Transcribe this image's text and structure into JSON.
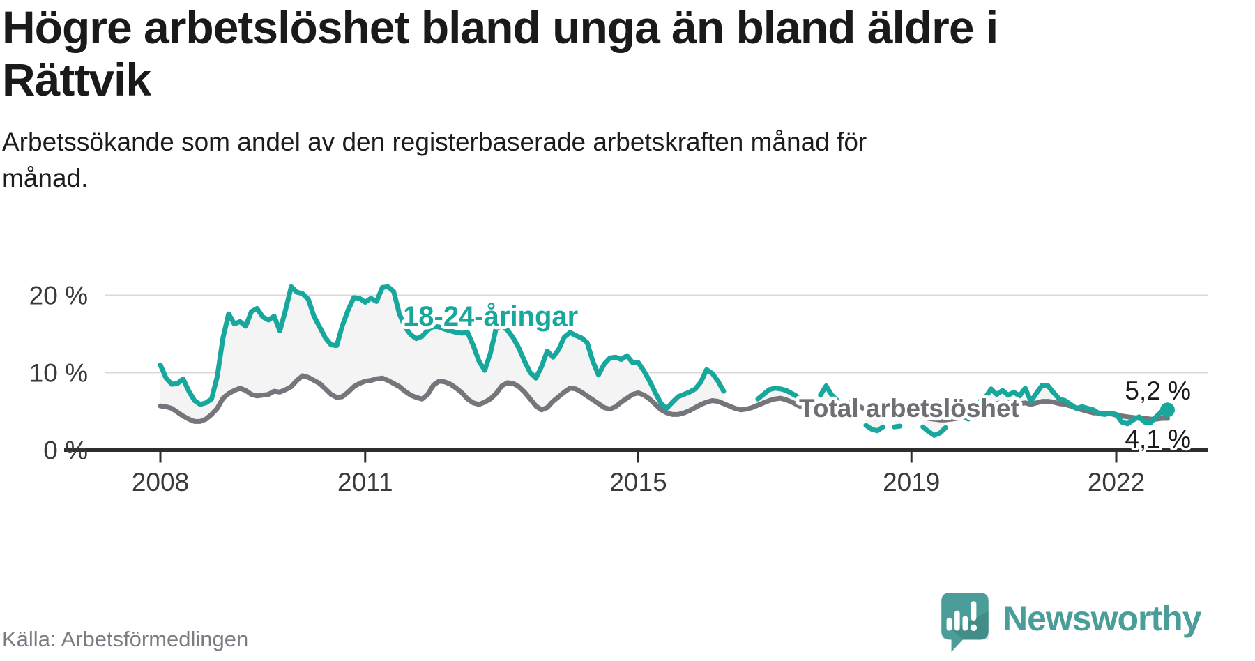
{
  "header": {
    "title_lines": [
      "Högre arbetslöshet bland unga än bland äldre i",
      "Rättvik"
    ],
    "subtitle_lines": [
      "Arbetssökande som andel av den registerbaserade arbetskraften månad för",
      "månad."
    ]
  },
  "footer": {
    "source": "Källa: Arbetsförmedlingen",
    "brand": "Newsworthy"
  },
  "colors": {
    "teal": "#18a79c",
    "gray": "#76757b",
    "band_fill": "#f4f4f5",
    "grid": "#d9d9d9",
    "axis": "#2d2d2d",
    "tick_text": "#3a3a3a",
    "end_label_text": "#1a1a1a",
    "total_label": "#6f6e74",
    "brand_teal": "#4a9d98"
  },
  "chart_data": {
    "type": "line",
    "unit": "%",
    "frequency": "monthly",
    "start_month": "2008-01",
    "end_month": "2022-10",
    "grid": "horizontal",
    "x_ticks": [
      2008,
      2011,
      2015,
      2019,
      2022
    ],
    "y_ticks": [
      {
        "value": 0,
        "label": "0 %"
      },
      {
        "value": 10,
        "label": "10 %"
      },
      {
        "value": 20,
        "label": "20 %"
      }
    ],
    "ylim": [
      0,
      22
    ],
    "series": [
      {
        "name": "18-24-åringar",
        "end_label": "5,2 %",
        "end_value": 5.2,
        "values": [
          11.0,
          9.3,
          8.5,
          8.6,
          9.2,
          7.6,
          6.4,
          5.9,
          6.1,
          6.6,
          9.5,
          14.5,
          17.6,
          16.3,
          16.6,
          16.0,
          17.9,
          18.3,
          17.2,
          16.8,
          17.3,
          15.4,
          18.1,
          21.1,
          20.4,
          20.2,
          19.5,
          17.3,
          15.9,
          14.5,
          13.6,
          13.5,
          16.1,
          18.1,
          19.7,
          19.6,
          19.1,
          19.6,
          19.2,
          21.0,
          21.1,
          20.5,
          17.6,
          15.9,
          14.9,
          14.4,
          14.7,
          15.5,
          16.0,
          15.9,
          15.6,
          15.4,
          15.2,
          15.1,
          15.2,
          13.5,
          11.5,
          10.3,
          12.5,
          15.7,
          16.1,
          15.5,
          14.5,
          13.2,
          11.5,
          10.0,
          9.3,
          10.8,
          12.8,
          12.0,
          13.0,
          14.6,
          15.2,
          14.8,
          14.5,
          13.9,
          11.5,
          9.7,
          11.1,
          11.9,
          12.0,
          11.7,
          12.2,
          11.3,
          11.3,
          10.2,
          8.9,
          7.4,
          6.0,
          5.4,
          6.2,
          6.9,
          7.2,
          7.5,
          7.9,
          8.8,
          10.4,
          9.9,
          8.9,
          7.6,
          null,
          null,
          null,
          null,
          null,
          6.6,
          7.2,
          7.8,
          8.0,
          7.9,
          7.7,
          7.3,
          6.9,
          null,
          null,
          null,
          7.1,
          8.3,
          7.1,
          6.4,
          null,
          null,
          null,
          null,
          3.2,
          2.7,
          2.5,
          3.0,
          null,
          3.0,
          3.1,
          null,
          null,
          null,
          3.0,
          2.4,
          1.9,
          2.2,
          2.9,
          null,
          null,
          null,
          4.0,
          5.2,
          6.3,
          6.8,
          7.9,
          7.2,
          7.7,
          7.1,
          7.5,
          7.0,
          8.0,
          6.3,
          7.4,
          8.4,
          8.3,
          7.4,
          6.6,
          6.4,
          5.9,
          5.4,
          5.6,
          5.4,
          5.2,
          4.7,
          4.6,
          4.8,
          4.6,
          3.6,
          3.4,
          3.9,
          4.3,
          3.6,
          3.5,
          4.3,
          5.0,
          5.2
        ]
      },
      {
        "name": "Total arbetslöshet",
        "end_label": "4,1 %",
        "end_value": 4.1,
        "values": [
          5.7,
          5.6,
          5.4,
          4.9,
          4.4,
          4.0,
          3.7,
          3.7,
          4.0,
          4.6,
          5.4,
          6.7,
          7.3,
          7.7,
          8.0,
          7.7,
          7.2,
          7.0,
          7.1,
          7.2,
          7.6,
          7.5,
          7.8,
          8.2,
          9.0,
          9.6,
          9.4,
          9.0,
          8.6,
          7.9,
          7.2,
          6.8,
          6.9,
          7.5,
          8.2,
          8.6,
          8.9,
          9.0,
          9.2,
          9.3,
          9.0,
          8.6,
          8.2,
          7.6,
          7.1,
          6.8,
          6.6,
          7.2,
          8.4,
          8.9,
          8.8,
          8.5,
          8.0,
          7.4,
          6.6,
          6.1,
          5.9,
          6.2,
          6.6,
          7.3,
          8.3,
          8.7,
          8.6,
          8.2,
          7.5,
          6.6,
          5.7,
          5.2,
          5.5,
          6.3,
          6.9,
          7.5,
          8.0,
          7.9,
          7.5,
          7.0,
          6.5,
          6.0,
          5.5,
          5.3,
          5.6,
          6.2,
          6.7,
          7.2,
          7.4,
          7.1,
          6.6,
          5.9,
          5.2,
          4.8,
          4.6,
          4.6,
          4.8,
          5.1,
          5.5,
          5.9,
          6.2,
          6.4,
          6.3,
          6.0,
          5.7,
          5.4,
          5.2,
          5.3,
          5.5,
          5.8,
          6.1,
          6.4,
          6.6,
          6.7,
          6.5,
          6.2,
          5.8,
          5.5,
          5.2,
          5.1,
          5.3,
          5.5,
          5.7,
          5.9,
          6.0,
          6.1,
          5.9,
          5.6,
          5.2,
          4.9,
          4.6,
          4.5,
          4.4,
          4.5,
          4.6,
          4.8,
          4.6,
          4.5,
          4.3,
          4.1,
          4.0,
          3.9,
          3.9,
          4.0,
          4.1,
          4.2,
          4.3,
          4.5,
          4.8,
          5.0,
          5.6,
          6.0,
          6.2,
          6.2,
          6.1,
          6.0,
          6.1,
          5.9,
          6.1,
          6.3,
          6.3,
          6.2,
          6.0,
          5.9,
          5.7,
          5.4,
          5.2,
          5.0,
          4.8,
          4.8,
          4.7,
          4.7,
          4.5,
          4.4,
          4.3,
          4.2,
          4.1,
          4.1,
          4.0,
          4.0,
          4.1,
          4.1
        ]
      }
    ]
  }
}
